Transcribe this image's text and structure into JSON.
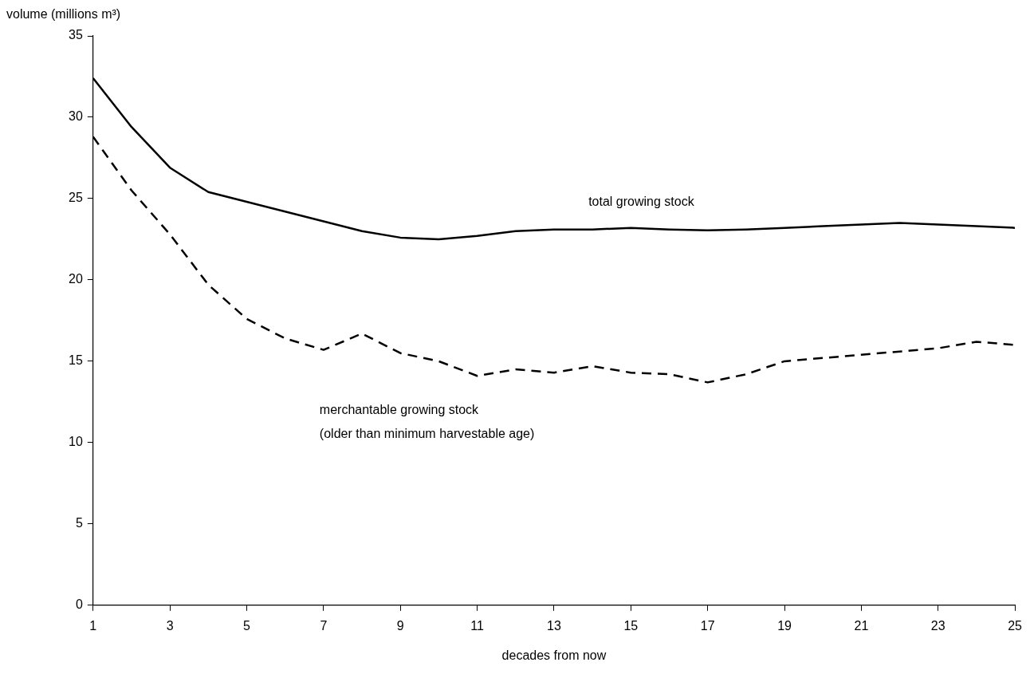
{
  "chart_data": {
    "type": "line",
    "xlabel": "decades from now",
    "ylabel": "volume (millions m³)",
    "x": [
      1,
      2,
      3,
      4,
      5,
      6,
      7,
      8,
      9,
      10,
      11,
      12,
      13,
      14,
      15,
      16,
      17,
      18,
      19,
      20,
      21,
      22,
      23,
      24,
      25
    ],
    "xlim": [
      1,
      25
    ],
    "xticks": [
      1,
      3,
      5,
      7,
      9,
      11,
      13,
      15,
      17,
      19,
      21,
      23,
      25
    ],
    "ylim": [
      0,
      35
    ],
    "yticks": [
      0,
      5,
      10,
      15,
      20,
      25,
      30,
      35
    ],
    "grid": false,
    "legend": false,
    "marker": "none",
    "series": [
      {
        "name": "total growing stock",
        "color": "#000000",
        "line_style": "solid",
        "values": [
          32.4,
          29.4,
          26.9,
          25.4,
          24.8,
          24.2,
          23.6,
          23.0,
          22.6,
          22.5,
          22.7,
          23.0,
          23.1,
          23.1,
          23.2,
          23.1,
          23.05,
          23.1,
          23.2,
          23.3,
          23.4,
          23.5,
          23.4,
          23.3,
          23.2
        ]
      },
      {
        "name": "merchantable growing stock\n(older than minimum harvestable age)",
        "color": "#000000",
        "line_style": "dashed",
        "values": [
          28.8,
          25.5,
          22.8,
          19.7,
          17.6,
          16.4,
          15.7,
          16.7,
          15.5,
          15.0,
          14.1,
          14.5,
          14.3,
          14.7,
          14.3,
          14.2,
          13.7,
          14.2,
          15.0,
          15.2,
          15.4,
          15.6,
          15.8,
          16.2,
          16.0
        ]
      }
    ]
  }
}
